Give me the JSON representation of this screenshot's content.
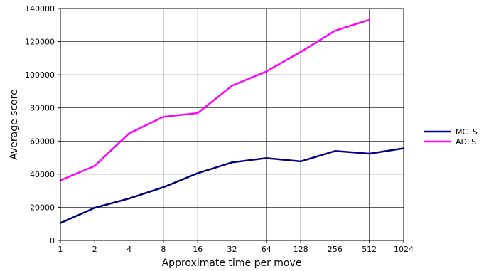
{
  "chart_data": {
    "type": "line",
    "title": "",
    "xlabel": "Approximate time per move",
    "ylabel": "Average score",
    "x_tick_labels": [
      "1",
      "2",
      "4",
      "8",
      "16",
      "32",
      "64",
      "128",
      "256",
      "512",
      "1024"
    ],
    "x_scale": "log2",
    "y_tick_labels": [
      "0",
      "20000",
      "40000",
      "60000",
      "80000",
      "100000",
      "120000",
      "140000"
    ],
    "ylim": [
      0,
      140000
    ],
    "grid": true,
    "legend_position": "right",
    "series": [
      {
        "name": "MCTS",
        "color": "#000080",
        "x": [
          1,
          2,
          4,
          8,
          16,
          32,
          64,
          128,
          256,
          512,
          1024
        ],
        "values": [
          10500,
          19700,
          25300,
          32100,
          40600,
          47100,
          49700,
          47700,
          54000,
          52400,
          55600
        ]
      },
      {
        "name": "ADLS",
        "color": "#ff00ff",
        "x": [
          1,
          2,
          4,
          8,
          16,
          32,
          64,
          128,
          256,
          512
        ],
        "values": [
          36300,
          45000,
          64600,
          74600,
          76900,
          93400,
          102000,
          113800,
          126600,
          133200
        ]
      }
    ]
  }
}
